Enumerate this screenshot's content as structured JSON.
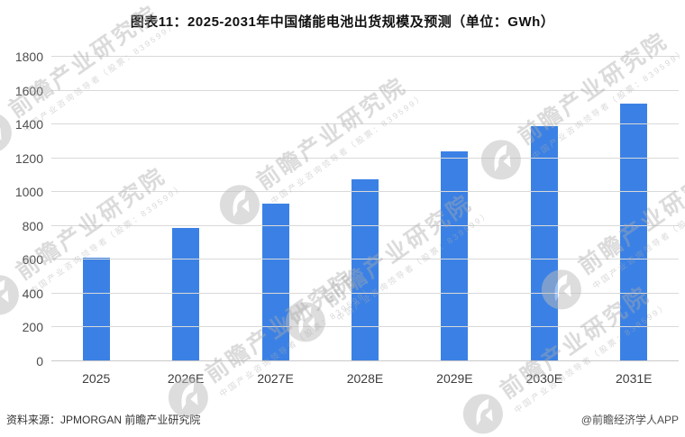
{
  "title": "图表11：2025-2031年中国储能电池出货规模及预测（单位：GWh）",
  "chart_data": {
    "type": "bar",
    "categories": [
      "2025",
      "2026E",
      "2027E",
      "2028E",
      "2029E",
      "2030E",
      "2031E"
    ],
    "values": [
      615,
      790,
      930,
      1075,
      1240,
      1390,
      1525
    ],
    "title": "图表11：2025-2031年中国储能电池出货规模及预测（单位：GWh）",
    "xlabel": "",
    "ylabel": "",
    "ylim": [
      0,
      1800
    ],
    "ytick_step": 200,
    "yticks": [
      0,
      200,
      400,
      600,
      800,
      1000,
      1200,
      1400,
      1600,
      1800
    ],
    "bar_color": "#3b81e5",
    "grid": true,
    "legend": "none"
  },
  "colors": {
    "bar": "#3b81e5",
    "gridline": "#d9d9d9",
    "axis_zero_line": "#c9c9c9",
    "title_text": "#111111",
    "tick_text": "#4d4d4d"
  },
  "footer": {
    "source": "资料来源：JPMORGAN   前瞻产业研究院",
    "credit": "@前瞻经济学人APP"
  },
  "watermark": {
    "text": "前瞻产业研究院",
    "subtext": "中国产业咨询领导者（股票：839599）"
  }
}
